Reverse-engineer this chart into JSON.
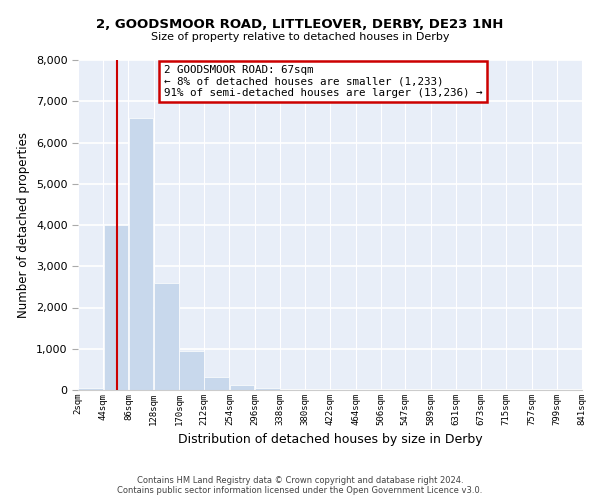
{
  "title_line1": "2, GOODSMOOR ROAD, LITTLEOVER, DERBY, DE23 1NH",
  "title_line2": "Size of property relative to detached houses in Derby",
  "xlabel": "Distribution of detached houses by size in Derby",
  "ylabel": "Number of detached properties",
  "bin_labels": [
    "2sqm",
    "44sqm",
    "86sqm",
    "128sqm",
    "170sqm",
    "212sqm",
    "254sqm",
    "296sqm",
    "338sqm",
    "380sqm",
    "422sqm",
    "464sqm",
    "506sqm",
    "547sqm",
    "589sqm",
    "631sqm",
    "673sqm",
    "715sqm",
    "757sqm",
    "799sqm",
    "841sqm"
  ],
  "bar_values": [
    50,
    4000,
    6600,
    2600,
    950,
    320,
    120,
    50,
    0,
    0,
    0,
    0,
    0,
    0,
    0,
    0,
    0,
    0,
    0,
    0
  ],
  "bar_color": "#c8d8ec",
  "bar_edge_color": "#ffffff",
  "property_line_x": 67,
  "bin_edges_numeric": [
    2,
    44,
    86,
    128,
    170,
    212,
    254,
    296,
    338,
    380,
    422,
    464,
    506,
    547,
    589,
    631,
    673,
    715,
    757,
    799,
    841
  ],
  "ylim": [
    0,
    8000
  ],
  "yticks": [
    0,
    1000,
    2000,
    3000,
    4000,
    5000,
    6000,
    7000,
    8000
  ],
  "annotation_title": "2 GOODSMOOR ROAD: 67sqm",
  "annotation_line1": "← 8% of detached houses are smaller (1,233)",
  "annotation_line2": "91% of semi-detached houses are larger (13,236) →",
  "annotation_box_color": "#ffffff",
  "annotation_box_edge": "#cc0000",
  "property_line_color": "#cc0000",
  "footer_line1": "Contains HM Land Registry data © Crown copyright and database right 2024.",
  "footer_line2": "Contains public sector information licensed under the Open Government Licence v3.0.",
  "bg_color": "#ffffff",
  "plot_bg_color": "#e8eef8",
  "grid_color": "#ffffff"
}
